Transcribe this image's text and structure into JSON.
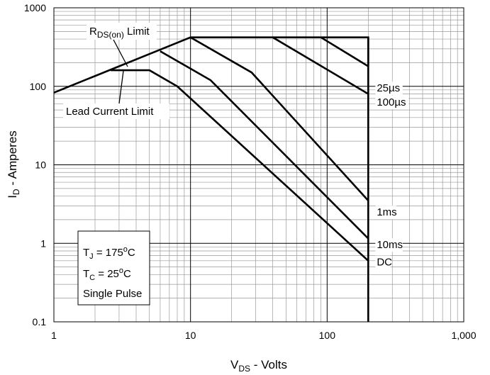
{
  "chart_data": {
    "type": "line",
    "xscale": "log",
    "yscale": "log",
    "xlim": [
      1,
      1000
    ],
    "ylim": [
      0.1,
      1000
    ],
    "grid": true,
    "x_tick_labels": [
      "1",
      "10",
      "100",
      "1,000"
    ],
    "y_tick_labels": [
      "0.1",
      "1",
      "10",
      "100",
      "1000"
    ],
    "xlabel": {
      "main": "V",
      "sub": "DS",
      "rest": " - Volts"
    },
    "ylabel": {
      "main": "I",
      "sub": "D",
      "rest": " - Amperes"
    },
    "series": [
      {
        "name": "25µs",
        "points": [
          [
            1,
            83
          ],
          [
            10,
            420
          ],
          [
            200,
            420
          ],
          [
            200,
            180
          ]
        ],
        "label_pos": "right"
      },
      {
        "name": "100µs",
        "points": [
          [
            40,
            420
          ],
          [
            200,
            80
          ]
        ],
        "label_pos": "right"
      },
      {
        "name": "1ms",
        "points": [
          [
            90,
            420
          ],
          [
            200,
            180
          ]
        ],
        "label_pos": "right"
      },
      {
        "name": "1ms",
        "points": [
          [
            10,
            420
          ],
          [
            28,
            150
          ],
          [
            200,
            3.5
          ]
        ],
        "label_pos": "right"
      },
      {
        "name": "10ms",
        "points": [
          [
            6,
            280
          ],
          [
            14,
            120
          ],
          [
            200,
            1.15
          ]
        ],
        "label_pos": "right"
      },
      {
        "name": "DC",
        "points": [
          [
            2.6,
            160
          ],
          [
            5,
            160
          ],
          [
            8,
            100
          ],
          [
            200,
            0.6
          ]
        ],
        "label_pos": "right"
      },
      {
        "name": "boundary",
        "points": [
          [
            200,
            420
          ],
          [
            200,
            0.1
          ]
        ]
      }
    ],
    "series_labels": [
      {
        "text": "25µs",
        "x": 200,
        "y": 95
      },
      {
        "text": "100µs",
        "x": 200,
        "y": 63
      },
      {
        "text": "1ms",
        "x": 200,
        "y": 2.5
      },
      {
        "text": "10ms",
        "x": 200,
        "y": 0.96
      },
      {
        "text": "DC",
        "x": 200,
        "y": 0.58
      }
    ],
    "annotations": {
      "rds_limit": {
        "main": "R",
        "sub": "DS(on)",
        "rest": " Limit"
      },
      "lead_limit": "Lead Current Limit",
      "conditions": [
        {
          "main": "T",
          "sub": "J",
          "rest": " = 175",
          "sup": "o",
          "tail": "C"
        },
        {
          "main": "T",
          "sub": "C",
          "rest": " = 25",
          "sup": "o",
          "tail": "C"
        },
        {
          "main": "Single Pulse",
          "sub": "",
          "rest": "",
          "sup": "",
          "tail": ""
        }
      ]
    }
  }
}
